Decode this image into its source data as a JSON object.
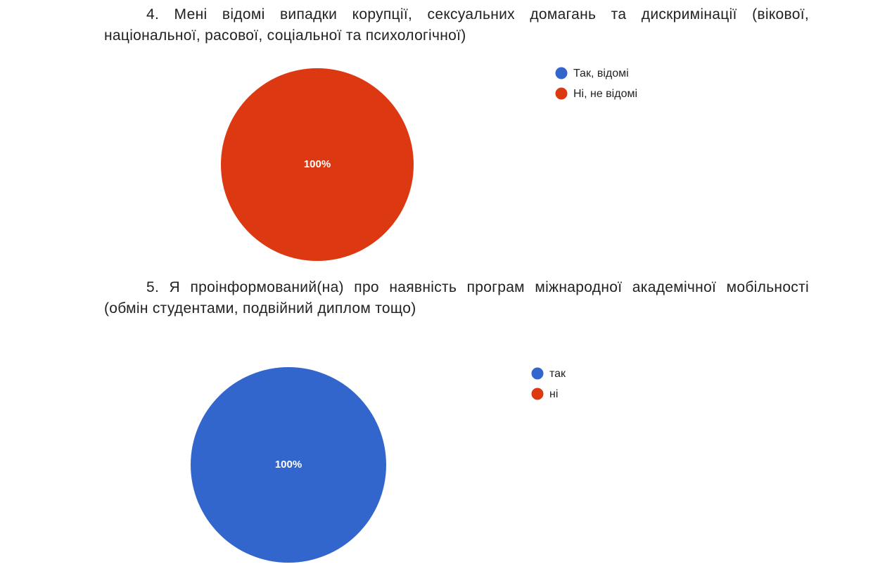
{
  "chart_data": [
    {
      "type": "pie",
      "title": "4. Мені відомі випадки корупції, сексуальних домагань та дискримінації (вікової, національної, расової, соціальної та психологічної)",
      "categories": [
        "Так, відомі",
        "Ні, не відомі"
      ],
      "values": [
        0,
        100
      ],
      "value_labels": [
        null,
        "100%"
      ],
      "colors": [
        "#3366cc",
        "#dc3912"
      ],
      "legend": "right"
    },
    {
      "type": "pie",
      "title": "5. Я проінформований(на) про наявність програм міжнародної академічної мобільності (обмін студентами, подвійний диплом тощо)",
      "categories": [
        "так",
        "ні"
      ],
      "values": [
        100,
        0
      ],
      "value_labels": [
        "100%",
        null
      ],
      "colors": [
        "#3366cc",
        "#dc3912"
      ],
      "legend": "right"
    }
  ]
}
